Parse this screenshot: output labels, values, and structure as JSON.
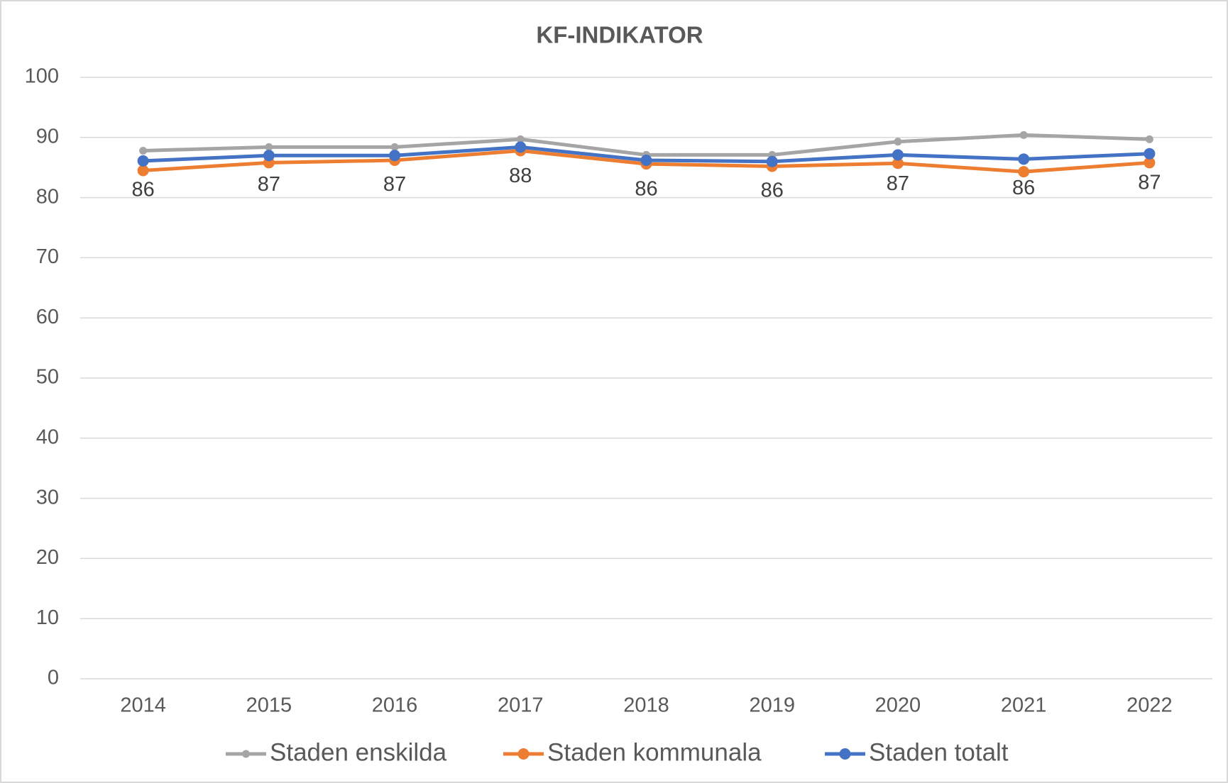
{
  "chart_data": {
    "type": "line",
    "title": "KF-INDIKATOR",
    "categories": [
      "2014",
      "2015",
      "2016",
      "2017",
      "2018",
      "2019",
      "2020",
      "2021",
      "2022"
    ],
    "series": [
      {
        "name": "Staden enskilda",
        "color": "#a5a5a5",
        "values": [
          87.8,
          88.4,
          88.4,
          89.7,
          87.1,
          87.1,
          89.3,
          90.4,
          89.7
        ]
      },
      {
        "name": "Staden kommunala",
        "color": "#ed7d31",
        "values": [
          84.5,
          85.8,
          86.2,
          87.8,
          85.6,
          85.2,
          85.7,
          84.3,
          85.8
        ]
      },
      {
        "name": "Staden totalt",
        "color": "#4472c4",
        "values": [
          86.1,
          87.0,
          87.0,
          88.4,
          86.2,
          86.0,
          87.1,
          86.4,
          87.3
        ],
        "value_labels": [
          "86",
          "87",
          "87",
          "88",
          "86",
          "86",
          "87",
          "86",
          "87"
        ]
      }
    ],
    "ylim": [
      0,
      100
    ],
    "yticks": [
      0,
      10,
      20,
      30,
      40,
      50,
      60,
      70,
      80,
      90,
      100
    ],
    "grid": true,
    "legend": "bottom"
  }
}
